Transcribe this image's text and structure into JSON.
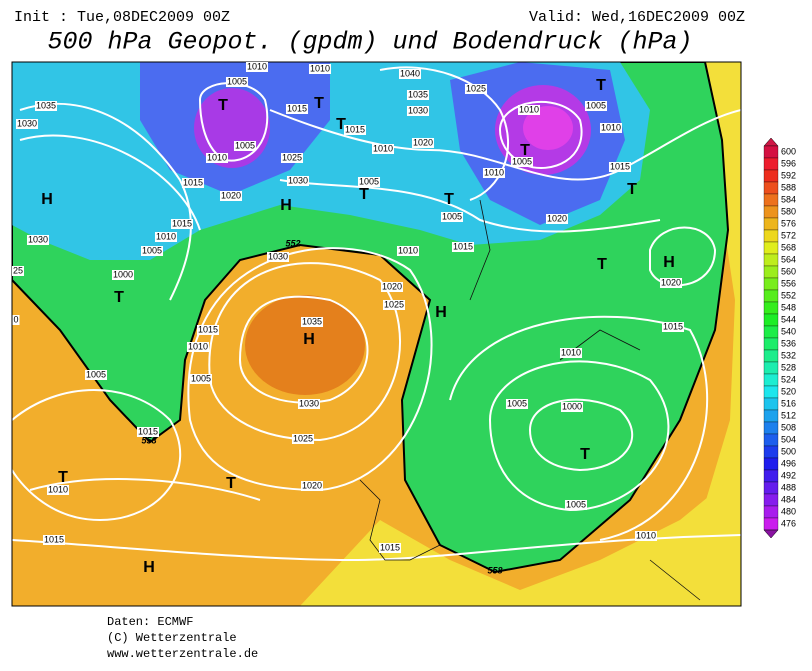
{
  "header": {
    "init": "Init : Tue,08DEC2009 00Z",
    "valid": "Valid: Wed,16DEC2009 00Z",
    "title": "500 hPa Geopot. (gpdm) und Bodendruck (hPa)"
  },
  "map": {
    "isobar_labels": [
      1010,
      1010,
      1005,
      1035,
      1030,
      1015,
      1040,
      1035,
      1025,
      1030,
      1010,
      1005,
      1010,
      1015,
      1005,
      1010,
      1020,
      1025,
      1010,
      1005,
      1010,
      1015,
      1005,
      1015,
      1030,
      1020,
      1005,
      1020,
      1015,
      1030,
      1010,
      1005,
      1010,
      1015,
      1030,
      1000,
      1020,
      1025,
      1020,
      1015,
      1010,
      1035,
      1015,
      1010,
      1005,
      1005,
      1030,
      1000,
      1005,
      1015,
      1025,
      1010,
      1020,
      1005,
      1015,
      1015,
      1010,
      25,
      0
    ],
    "contour_labels": [
      552,
      558,
      558
    ],
    "pressure_centers": [
      "T",
      "T",
      "T",
      "T",
      "T",
      "T",
      "T",
      "H",
      "H",
      "T",
      "H",
      "H",
      "T",
      "H",
      "T",
      "T",
      "T",
      "H",
      "T"
    ]
  },
  "legend": {
    "levels": [
      600,
      596,
      592,
      588,
      584,
      580,
      576,
      572,
      568,
      564,
      560,
      556,
      552,
      548,
      544,
      540,
      536,
      532,
      528,
      524,
      520,
      516,
      512,
      508,
      504,
      500,
      496,
      492,
      488,
      484,
      480,
      476
    ]
  },
  "footer": {
    "source": "Daten: ECMWF",
    "copyright": "(C) Wetterzentrale",
    "url": "www.wetterzentrale.de"
  }
}
